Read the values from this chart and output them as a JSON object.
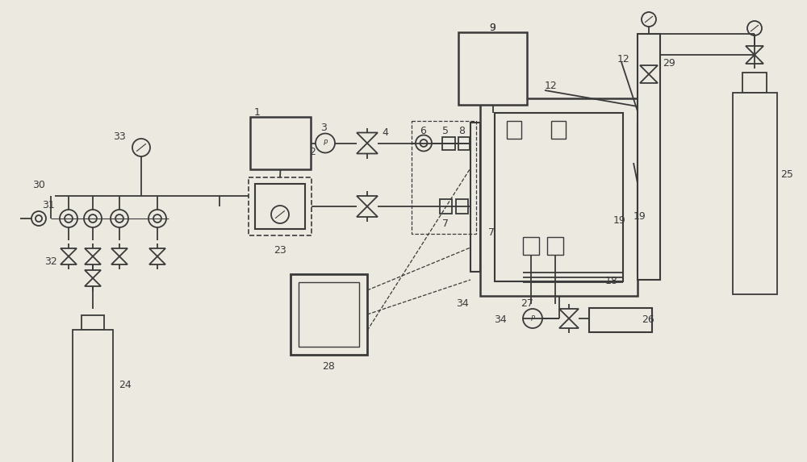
{
  "bg_color": "#ece9e1",
  "line_color": "#3a3a3a",
  "fig_width": 10.0,
  "fig_height": 5.73,
  "dpi": 100
}
